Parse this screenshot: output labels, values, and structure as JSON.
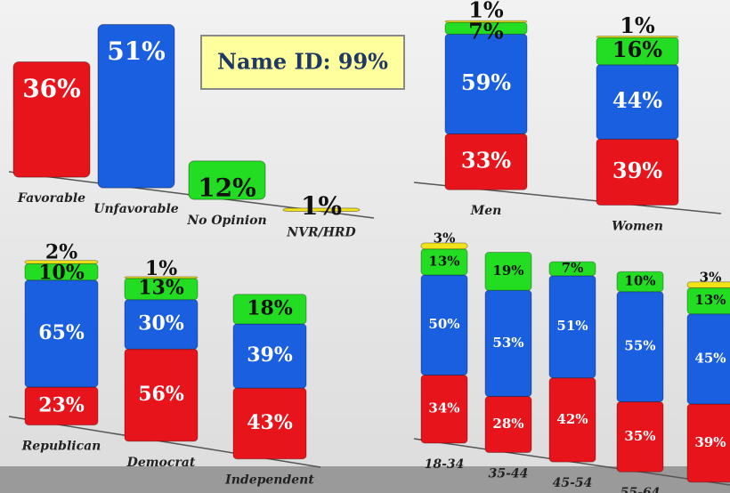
{
  "chart_data": [
    {
      "type": "bar",
      "categories": [
        "Favorable",
        "Unfavorable",
        "No Opinion",
        "NVR/HRD"
      ],
      "values": [
        36,
        51,
        12,
        1
      ],
      "value_labels": [
        "36%",
        "51%",
        "12%",
        "1%"
      ],
      "colors": [
        "#e8141c",
        "#1a5fe0",
        "#22dd22",
        "#f2e21a"
      ],
      "annotation": "Name ID: 99%"
    },
    {
      "type": "stacked_bar",
      "categories": [
        "Men",
        "Women"
      ],
      "series": [
        {
          "color": "#e8141c",
          "values": [
            33,
            39
          ],
          "value_labels": [
            "33%",
            "39%"
          ]
        },
        {
          "color": "#1a5fe0",
          "values": [
            59,
            44
          ],
          "value_labels": [
            "59%",
            "44%"
          ]
        },
        {
          "color": "#22dd22",
          "values": [
            7,
            16
          ],
          "value_labels": [
            "7%",
            "16%"
          ]
        },
        {
          "color": "#f2e21a",
          "values": [
            1,
            1
          ],
          "value_labels": [
            "1%",
            "1%"
          ]
        }
      ]
    },
    {
      "type": "stacked_bar",
      "categories": [
        "Republican",
        "Democrat",
        "Independent"
      ],
      "series": [
        {
          "color": "#e8141c",
          "values": [
            23,
            56,
            43
          ],
          "value_labels": [
            "23%",
            "56%",
            "43%"
          ]
        },
        {
          "color": "#1a5fe0",
          "values": [
            65,
            30,
            39
          ],
          "value_labels": [
            "65%",
            "30%",
            "39%"
          ]
        },
        {
          "color": "#22dd22",
          "values": [
            10,
            13,
            18
          ],
          "value_labels": [
            "10%",
            "13%",
            "18%"
          ]
        },
        {
          "color": "#f2e21a",
          "values": [
            2,
            1,
            null
          ],
          "value_labels": [
            "2%",
            "1%",
            null
          ]
        }
      ]
    },
    {
      "type": "stacked_bar",
      "categories": [
        "18-34",
        "35-44",
        "45-54",
        "55-64",
        null
      ],
      "series": [
        {
          "color": "#e8141c",
          "values": [
            34,
            28,
            42,
            35,
            39
          ],
          "value_labels": [
            "34%",
            "28%",
            "42%",
            "35%",
            "39%"
          ]
        },
        {
          "color": "#1a5fe0",
          "values": [
            50,
            53,
            51,
            55,
            45
          ],
          "value_labels": [
            "50%",
            "53%",
            "51%",
            "55%",
            "45%"
          ]
        },
        {
          "color": "#22dd22",
          "values": [
            13,
            19,
            7,
            10,
            13
          ],
          "value_labels": [
            "13%",
            "19%",
            "7%",
            "10%",
            "13%"
          ]
        },
        {
          "color": "#f2e21a",
          "values": [
            3,
            null,
            null,
            null,
            3
          ],
          "value_labels": [
            "3%",
            null,
            null,
            null,
            "3%"
          ]
        }
      ]
    }
  ]
}
